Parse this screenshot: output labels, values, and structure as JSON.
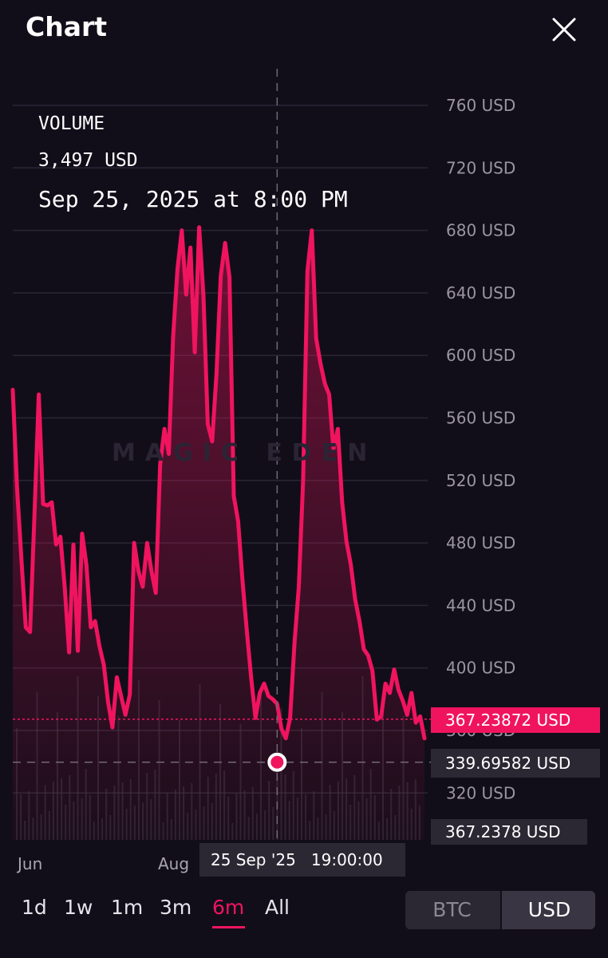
{
  "header": {
    "title": "Chart"
  },
  "info": {
    "metric": "VOLUME",
    "value": "3,497 USD",
    "date": "Sep 25, 2025 at 8:00 PM"
  },
  "watermark": "MAGIC EDEN",
  "price_tags": {
    "current": "367.23872 USD",
    "cursor": "339.69582 USD",
    "bottom": "367.2378 USD"
  },
  "crosshair_label": {
    "date": "25 Sep '25",
    "time": "19:00:00"
  },
  "x_labels": [
    "Jun",
    "Aug"
  ],
  "time_ranges": [
    {
      "label": "1d",
      "active": false
    },
    {
      "label": "1w",
      "active": false
    },
    {
      "label": "1m",
      "active": false
    },
    {
      "label": "3m",
      "active": false
    },
    {
      "label": "6m",
      "active": true
    },
    {
      "label": "All",
      "active": false
    }
  ],
  "currency_toggle": {
    "options": [
      "BTC",
      "USD"
    ],
    "selected": "USD"
  },
  "colors": {
    "accent": "#f0145f",
    "background": "#120e19",
    "panel": "#2b2733"
  },
  "icons": {
    "close": "close-icon"
  },
  "chart_data": {
    "type": "area",
    "ylim": [
      300,
      780
    ],
    "y_ticks": [
      760,
      720,
      680,
      640,
      600,
      560,
      520,
      480,
      440,
      400,
      360,
      320
    ],
    "y_tick_suffix": " USD",
    "current_price": 367.23872,
    "cursor": {
      "index": 61,
      "price": 339.69582
    },
    "values": [
      578,
      515,
      469,
      426,
      423,
      498,
      575,
      505,
      504,
      506,
      479,
      484,
      451,
      410,
      479,
      411,
      486,
      466,
      426,
      430,
      414,
      402,
      378,
      362,
      394,
      382,
      370,
      383,
      480,
      462,
      452,
      480,
      462,
      448,
      530,
      553,
      537,
      612,
      655,
      680,
      639,
      669,
      602,
      682,
      638,
      556,
      545,
      588,
      651,
      672,
      650,
      510,
      494,
      456,
      424,
      394,
      368,
      384,
      390,
      382,
      380,
      377,
      361,
      355,
      368,
      416,
      452,
      520,
      654,
      680,
      611,
      595,
      582,
      575,
      540,
      553,
      506,
      481,
      466,
      444,
      430,
      412,
      408,
      398,
      367,
      369,
      390,
      384,
      399,
      386,
      379,
      370,
      384,
      365,
      369,
      355
    ]
  }
}
